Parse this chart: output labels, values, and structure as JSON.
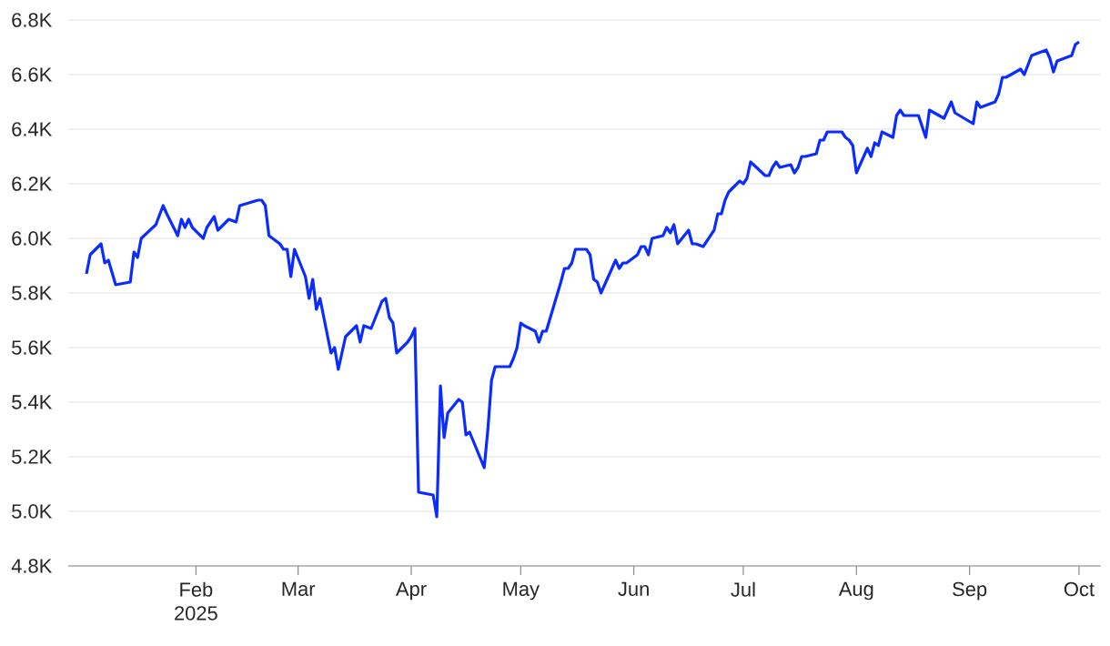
{
  "chart_data": {
    "type": "line",
    "x": [
      "2025-01-02",
      "2025-01-03",
      "2025-01-06",
      "2025-01-07",
      "2025-01-08",
      "2025-01-10",
      "2025-01-14",
      "2025-01-15",
      "2025-01-16",
      "2025-01-17",
      "2025-01-21",
      "2025-01-23",
      "2025-01-24",
      "2025-01-27",
      "2025-01-28",
      "2025-01-29",
      "2025-01-30",
      "2025-01-31",
      "2025-02-03",
      "2025-02-04",
      "2025-02-06",
      "2025-02-07",
      "2025-02-10",
      "2025-02-12",
      "2025-02-13",
      "2025-02-18",
      "2025-02-19",
      "2025-02-20",
      "2025-02-21",
      "2025-02-24",
      "2025-02-25",
      "2025-02-26",
      "2025-02-27",
      "2025-02-28",
      "2025-03-03",
      "2025-03-04",
      "2025-03-05",
      "2025-03-06",
      "2025-03-07",
      "2025-03-10",
      "2025-03-11",
      "2025-03-12",
      "2025-03-14",
      "2025-03-17",
      "2025-03-18",
      "2025-03-19",
      "2025-03-21",
      "2025-03-24",
      "2025-03-25",
      "2025-03-26",
      "2025-03-27",
      "2025-03-28",
      "2025-03-31",
      "2025-04-01",
      "2025-04-02",
      "2025-04-03",
      "2025-04-07",
      "2025-04-08",
      "2025-04-09",
      "2025-04-10",
      "2025-04-11",
      "2025-04-14",
      "2025-04-15",
      "2025-04-16",
      "2025-04-17",
      "2025-04-21",
      "2025-04-22",
      "2025-04-23",
      "2025-04-24",
      "2025-04-28",
      "2025-04-29",
      "2025-04-30",
      "2025-05-01",
      "2025-05-02",
      "2025-05-05",
      "2025-05-06",
      "2025-05-07",
      "2025-05-08",
      "2025-05-12",
      "2025-05-13",
      "2025-05-14",
      "2025-05-15",
      "2025-05-16",
      "2025-05-19",
      "2025-05-20",
      "2025-05-21",
      "2025-05-22",
      "2025-05-23",
      "2025-05-27",
      "2025-05-28",
      "2025-05-29",
      "2025-05-30",
      "2025-06-02",
      "2025-06-03",
      "2025-06-04",
      "2025-06-05",
      "2025-06-06",
      "2025-06-09",
      "2025-06-10",
      "2025-06-11",
      "2025-06-12",
      "2025-06-13",
      "2025-06-16",
      "2025-06-17",
      "2025-06-18",
      "2025-06-20",
      "2025-06-23",
      "2025-06-24",
      "2025-06-25",
      "2025-06-26",
      "2025-06-27",
      "2025-06-30",
      "2025-07-01",
      "2025-07-02",
      "2025-07-03",
      "2025-07-07",
      "2025-07-08",
      "2025-07-09",
      "2025-07-10",
      "2025-07-11",
      "2025-07-14",
      "2025-07-15",
      "2025-07-16",
      "2025-07-17",
      "2025-07-18",
      "2025-07-21",
      "2025-07-22",
      "2025-07-23",
      "2025-07-24",
      "2025-07-28",
      "2025-07-29",
      "2025-07-30",
      "2025-07-31",
      "2025-08-01",
      "2025-08-04",
      "2025-08-05",
      "2025-08-06",
      "2025-08-07",
      "2025-08-08",
      "2025-08-11",
      "2025-08-12",
      "2025-08-13",
      "2025-08-14",
      "2025-08-18",
      "2025-08-19",
      "2025-08-20",
      "2025-08-21",
      "2025-08-25",
      "2025-08-26",
      "2025-08-27",
      "2025-08-28",
      "2025-09-02",
      "2025-09-03",
      "2025-09-04",
      "2025-09-08",
      "2025-09-09",
      "2025-09-10",
      "2025-09-11",
      "2025-09-15",
      "2025-09-16",
      "2025-09-18",
      "2025-09-22",
      "2025-09-23",
      "2025-09-24",
      "2025-09-25",
      "2025-09-29",
      "2025-09-30",
      "2025-10-01"
    ],
    "series": [
      {
        "color": "#0a2cff",
        "values": [
          5870,
          5940,
          5980,
          5910,
          5920,
          5830,
          5840,
          5950,
          5930,
          6000,
          6050,
          6120,
          6090,
          6010,
          6070,
          6040,
          6070,
          6040,
          6000,
          6040,
          6080,
          6030,
          6070,
          6060,
          6120,
          6140,
          6140,
          6120,
          6010,
          5980,
          5960,
          5960,
          5860,
          5960,
          5860,
          5780,
          5850,
          5740,
          5780,
          5580,
          5600,
          5520,
          5640,
          5680,
          5620,
          5680,
          5670,
          5770,
          5780,
          5710,
          5690,
          5580,
          5620,
          5640,
          5670,
          5070,
          5060,
          4980,
          5460,
          5270,
          5360,
          5410,
          5400,
          5280,
          5290,
          5160,
          5300,
          5480,
          5530,
          5530,
          5560,
          5600,
          5690,
          5680,
          5660,
          5620,
          5660,
          5660,
          5840,
          5890,
          5890,
          5910,
          5960,
          5960,
          5940,
          5850,
          5840,
          5800,
          5920,
          5890,
          5910,
          5910,
          5940,
          5970,
          5970,
          5940,
          6000,
          6010,
          6040,
          6020,
          6050,
          5980,
          6030,
          5980,
          5980,
          5970,
          6030,
          6090,
          6090,
          6140,
          6170,
          6210,
          6200,
          6220,
          6280,
          6230,
          6230,
          6260,
          6280,
          6260,
          6270,
          6240,
          6260,
          6300,
          6300,
          6310,
          6360,
          6360,
          6390,
          6390,
          6370,
          6360,
          6340,
          6240,
          6330,
          6300,
          6350,
          6340,
          6390,
          6370,
          6450,
          6470,
          6450,
          6450,
          6410,
          6370,
          6470,
          6440,
          6470,
          6500,
          6460,
          6420,
          6500,
          6480,
          6500,
          6530,
          6590,
          6590,
          6620,
          6600,
          6670,
          6690,
          6660,
          6610,
          6650,
          6670,
          6710,
          6720
        ]
      }
    ],
    "xlim": [
      "2024-12-28",
      "2025-10-07"
    ],
    "xticks": [
      {
        "value": "2025-02-01",
        "label": "Feb 2025"
      },
      {
        "value": "2025-03-01",
        "label": "Mar"
      },
      {
        "value": "2025-04-01",
        "label": "Apr"
      },
      {
        "value": "2025-05-01",
        "label": "May"
      },
      {
        "value": "2025-06-01",
        "label": "Jun"
      },
      {
        "value": "2025-07-01",
        "label": "Jul"
      },
      {
        "value": "2025-08-01",
        "label": "Aug"
      },
      {
        "value": "2025-09-01",
        "label": "Sep"
      },
      {
        "value": "2025-10-01",
        "label": "Oct"
      }
    ],
    "ylim": [
      4800,
      6800
    ],
    "yticks": [
      {
        "value": 4800,
        "label": "4.8K"
      },
      {
        "value": 5000,
        "label": "5.0K"
      },
      {
        "value": 5200,
        "label": "5.2K"
      },
      {
        "value": 5400,
        "label": "5.4K"
      },
      {
        "value": 5600,
        "label": "5.6K"
      },
      {
        "value": 5800,
        "label": "5.8K"
      },
      {
        "value": 6000,
        "label": "6.0K"
      },
      {
        "value": 6200,
        "label": "6.2K"
      },
      {
        "value": 6400,
        "label": "6.4K"
      },
      {
        "value": 6600,
        "label": "6.6K"
      },
      {
        "value": 6800,
        "label": "6.8K"
      }
    ],
    "grid": "y"
  }
}
